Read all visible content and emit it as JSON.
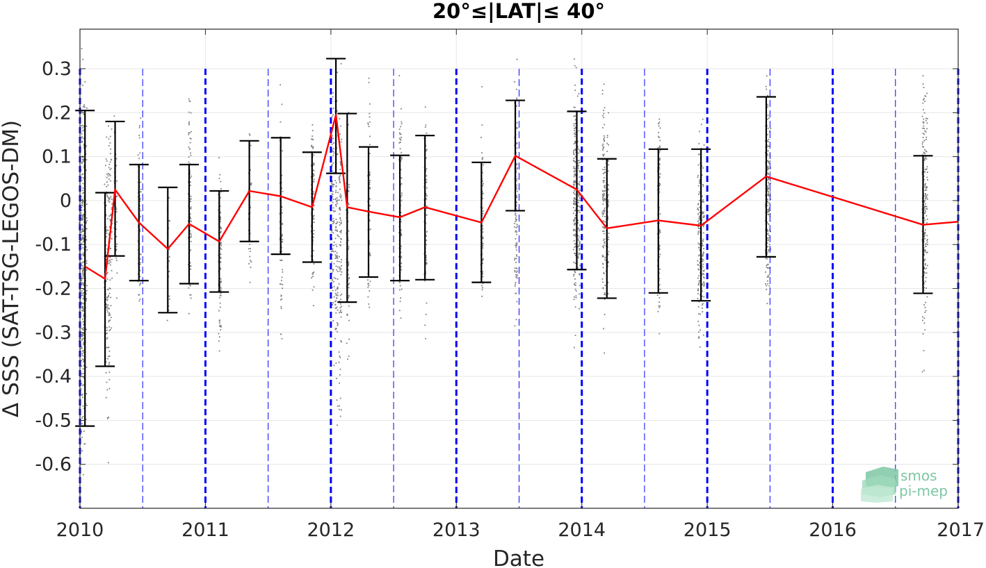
{
  "chart_data": {
    "type": "line",
    "title": "20°≤|LAT|≤ 40°",
    "xlabel": "Date",
    "ylabel": "Δ SSS (SAT-TSG-LEGOS-DM)",
    "xlim": [
      2010,
      2017
    ],
    "ylim": [
      -0.7,
      0.39
    ],
    "x_ticks": [
      "2010",
      "2011",
      "2012",
      "2013",
      "2014",
      "2015",
      "2016",
      "2017"
    ],
    "y_ticks": [
      "0.3",
      "0.2",
      "0.1",
      "0",
      "-0.1",
      "-0.2",
      "-0.3",
      "-0.4",
      "-0.5",
      "-0.6"
    ],
    "grid": true,
    "series": [
      {
        "color": "#ff0000",
        "x": [
          2010.04,
          2010.2,
          2010.28,
          2010.47,
          2010.7,
          2010.87,
          2011.11,
          2011.35,
          2011.6,
          2011.85,
          2012.04,
          2012.13,
          2012.3,
          2012.55,
          2012.75,
          2013.2,
          2013.47,
          2013.96,
          2014.2,
          2014.61,
          2014.95,
          2015.47,
          2016.72,
          2017.0
        ],
        "y": [
          -0.15,
          -0.178,
          0.025,
          -0.05,
          -0.11,
          -0.053,
          -0.093,
          0.022,
          0.01,
          -0.015,
          0.195,
          -0.015,
          -0.025,
          -0.038,
          -0.015,
          -0.05,
          0.102,
          0.025,
          -0.063,
          -0.045,
          -0.057,
          0.055,
          -0.055,
          -0.048
        ]
      }
    ],
    "error_bars": {
      "color": "#000000",
      "x": [
        2010.04,
        2010.2,
        2010.28,
        2010.47,
        2010.7,
        2010.87,
        2011.11,
        2011.35,
        2011.6,
        2011.85,
        2012.04,
        2012.13,
        2012.3,
        2012.55,
        2012.75,
        2013.2,
        2013.47,
        2013.96,
        2014.2,
        2014.61,
        2014.95,
        2015.47,
        2016.72
      ],
      "upper": [
        0.205,
        0.018,
        0.18,
        0.082,
        0.03,
        0.082,
        0.022,
        0.136,
        0.143,
        0.11,
        0.323,
        0.198,
        0.122,
        0.103,
        0.148,
        0.087,
        0.228,
        0.203,
        0.095,
        0.117,
        0.117,
        0.236,
        0.102
      ],
      "lower": [
        -0.513,
        -0.377,
        -0.126,
        -0.182,
        -0.255,
        -0.189,
        -0.208,
        -0.093,
        -0.122,
        -0.14,
        0.062,
        -0.231,
        -0.174,
        -0.182,
        -0.18,
        -0.186,
        -0.023,
        -0.157,
        -0.222,
        -0.21,
        -0.228,
        -0.128,
        -0.211
      ]
    },
    "scatter": {
      "color": "#808080",
      "columns": [
        {
          "x": 2010.0,
          "lo": -0.7,
          "hi": 0.39,
          "n": 130
        },
        {
          "x": 2010.02,
          "lo": -0.68,
          "hi": 0.39,
          "n": 150
        },
        {
          "x": 2010.03,
          "lo": -0.63,
          "hi": 0.38,
          "n": 110
        },
        {
          "x": 2010.04,
          "lo": -0.66,
          "hi": 0.37,
          "n": 70
        },
        {
          "x": 2010.2,
          "lo": -0.58,
          "hi": 0.29,
          "n": 60
        },
        {
          "x": 2010.22,
          "lo": -0.69,
          "hi": 0.31,
          "n": 80
        },
        {
          "x": 2010.24,
          "lo": -0.49,
          "hi": 0.27,
          "n": 60
        },
        {
          "x": 2010.28,
          "lo": -0.33,
          "hi": 0.24,
          "n": 40
        },
        {
          "x": 2010.47,
          "lo": -0.37,
          "hi": 0.29,
          "n": 70
        },
        {
          "x": 2010.7,
          "lo": -0.35,
          "hi": 0.1,
          "n": 25
        },
        {
          "x": 2010.87,
          "lo": -0.35,
          "hi": 0.34,
          "n": 90
        },
        {
          "x": 2011.11,
          "lo": -0.39,
          "hi": 0.15,
          "n": 110
        },
        {
          "x": 2011.35,
          "lo": -0.28,
          "hi": 0.24,
          "n": 40
        },
        {
          "x": 2011.6,
          "lo": -0.43,
          "hi": 0.33,
          "n": 70
        },
        {
          "x": 2011.85,
          "lo": -0.33,
          "hi": 0.3,
          "n": 110
        },
        {
          "x": 2012.01,
          "lo": -0.44,
          "hi": 0.39,
          "n": 90
        },
        {
          "x": 2012.04,
          "lo": -0.56,
          "hi": 0.39,
          "n": 100
        },
        {
          "x": 2012.07,
          "lo": -0.59,
          "hi": 0.35,
          "n": 90
        },
        {
          "x": 2012.13,
          "lo": -0.49,
          "hi": 0.3,
          "n": 80
        },
        {
          "x": 2012.3,
          "lo": -0.37,
          "hi": 0.37,
          "n": 70
        },
        {
          "x": 2012.55,
          "lo": -0.37,
          "hi": 0.34,
          "n": 100
        },
        {
          "x": 2012.75,
          "lo": -0.34,
          "hi": 0.3,
          "n": 90
        },
        {
          "x": 2013.2,
          "lo": -0.42,
          "hi": 0.28,
          "n": 70
        },
        {
          "x": 2013.47,
          "lo": -0.39,
          "hi": 0.39,
          "n": 110
        },
        {
          "x": 2013.94,
          "lo": -0.37,
          "hi": 0.39,
          "n": 140
        },
        {
          "x": 2013.97,
          "lo": -0.33,
          "hi": 0.31,
          "n": 80
        },
        {
          "x": 2014.17,
          "lo": -0.4,
          "hi": 0.39,
          "n": 110
        },
        {
          "x": 2014.2,
          "lo": -0.3,
          "hi": 0.25,
          "n": 80
        },
        {
          "x": 2014.61,
          "lo": -0.4,
          "hi": 0.37,
          "n": 110
        },
        {
          "x": 2014.93,
          "lo": -0.44,
          "hi": 0.24,
          "n": 100
        },
        {
          "x": 2014.96,
          "lo": -0.37,
          "hi": 0.21,
          "n": 80
        },
        {
          "x": 2015.47,
          "lo": -0.35,
          "hi": 0.39,
          "n": 140
        },
        {
          "x": 2015.49,
          "lo": -0.31,
          "hi": 0.3,
          "n": 80
        },
        {
          "x": 2016.72,
          "lo": -0.44,
          "hi": 0.39,
          "n": 140
        },
        {
          "x": 2016.74,
          "lo": -0.36,
          "hi": 0.33,
          "n": 80
        }
      ]
    },
    "vlines": {
      "color": "#0000ff",
      "thick": [
        2010,
        2011,
        2012,
        2013,
        2014,
        2015,
        2016,
        2017
      ],
      "thin": [
        2010.5,
        2011.5,
        2012.5,
        2013.5,
        2014.5,
        2015.5,
        2016.5
      ],
      "ymax": 0.3
    }
  },
  "logo": {
    "line1": "smos",
    "line2": "pi-mep",
    "color": "#7dc7a4"
  }
}
